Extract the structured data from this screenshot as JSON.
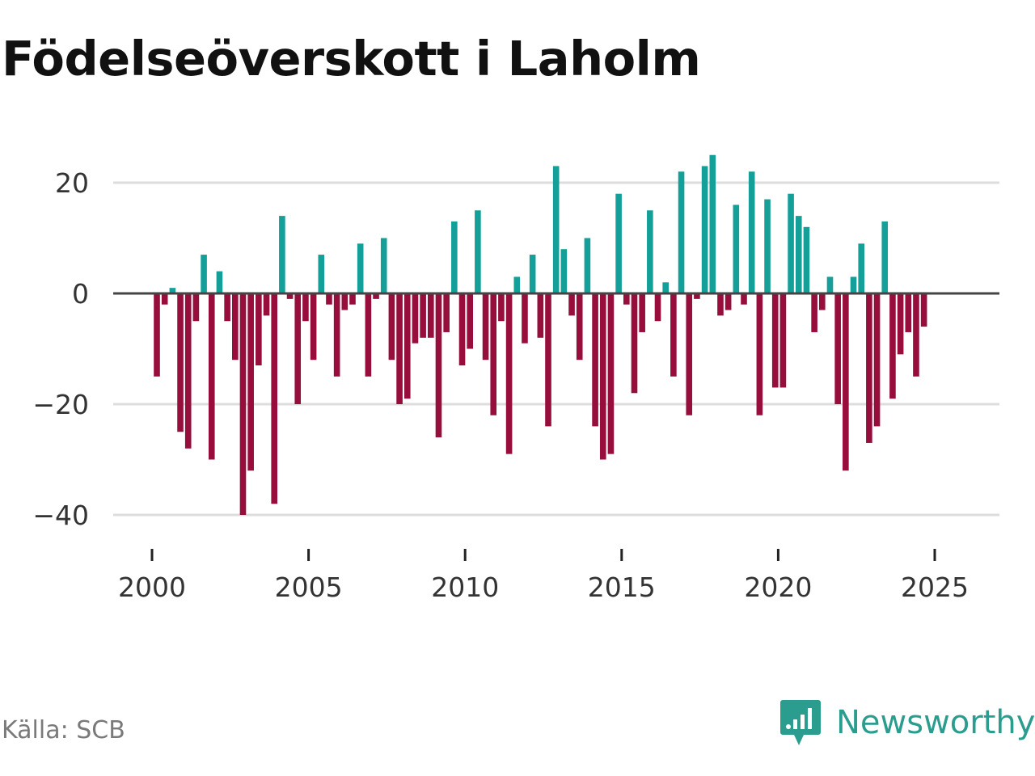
{
  "title": "Födelseöverskott i Laholm",
  "source": "Källa: SCB",
  "brand": {
    "name": "Newsworthy",
    "icon": "newsworthy-logo-icon"
  },
  "colors": {
    "positive": "#14a099",
    "negative": "#970d3c",
    "zero_line": "#444444",
    "grid": "#dddddd",
    "brand": "#2a9d8f"
  },
  "chart_data": {
    "type": "bar",
    "title": "Födelseöverskott i Laholm",
    "xlabel": "",
    "ylabel": "",
    "x_start": 2000.0,
    "x_step": 0.25,
    "xlim": [
      1999.25,
      2027.25
    ],
    "ylim": [
      -45,
      27
    ],
    "x_ticks": [
      2000,
      2005,
      2010,
      2015,
      2020,
      2025
    ],
    "y_ticks": [
      20,
      0,
      -20,
      -40
    ],
    "y_tick_labels": [
      "20",
      "0",
      "−20",
      "−40"
    ],
    "grid": true,
    "values": [
      -15,
      -2,
      1,
      -25,
      -28,
      -5,
      7,
      -30,
      4,
      -5,
      -12,
      -40,
      -32,
      -13,
      -4,
      -38,
      14,
      -1,
      -20,
      -5,
      -12,
      7,
      -2,
      -15,
      -3,
      -2,
      9,
      -15,
      -1,
      10,
      -12,
      -20,
      -19,
      -9,
      -8,
      -8,
      -26,
      -7,
      13,
      -13,
      -10,
      15,
      -12,
      -22,
      -5,
      -29,
      3,
      -9,
      7,
      -8,
      -24,
      23,
      8,
      -4,
      -12,
      10,
      -24,
      -30,
      -29,
      18,
      -2,
      -18,
      -7,
      15,
      -5,
      2,
      -15,
      22,
      -22,
      -1,
      23,
      25,
      -4,
      -3,
      16,
      -2,
      22,
      -22,
      17,
      -17,
      -17,
      18,
      14,
      12,
      -7,
      -3,
      3,
      -20,
      -32,
      3,
      9,
      -27,
      -24,
      13,
      -19,
      -11,
      -7,
      -15,
      -6
    ]
  }
}
